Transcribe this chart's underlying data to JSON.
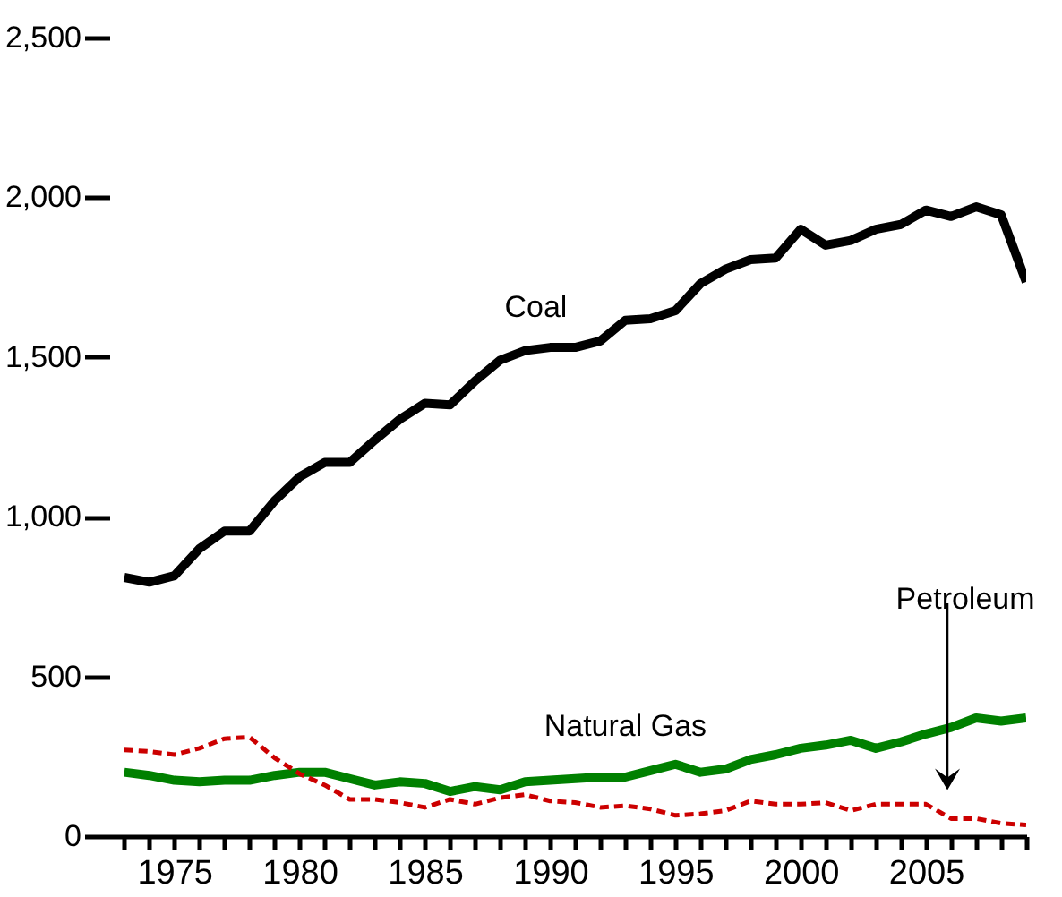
{
  "chart_data": {
    "type": "line",
    "x": [
      1973,
      1974,
      1975,
      1976,
      1977,
      1978,
      1979,
      1980,
      1981,
      1982,
      1983,
      1984,
      1985,
      1986,
      1987,
      1988,
      1989,
      1990,
      1991,
      1992,
      1993,
      1994,
      1995,
      1996,
      1997,
      1998,
      1999,
      2000,
      2001,
      2002,
      2003,
      2004,
      2005,
      2006,
      2007,
      2008,
      2009
    ],
    "series": [
      {
        "name": "Coal",
        "color": "#000000",
        "line_style": "solid",
        "values": [
          810,
          795,
          815,
          900,
          955,
          955,
          1050,
          1125,
          1170,
          1170,
          1240,
          1305,
          1355,
          1350,
          1425,
          1490,
          1520,
          1530,
          1530,
          1550,
          1615,
          1620,
          1645,
          1730,
          1775,
          1805,
          1810,
          1900,
          1850,
          1865,
          1900,
          1915,
          1960,
          1940,
          1970,
          1945,
          1735
        ]
      },
      {
        "name": "Natural Gas",
        "color": "#008000",
        "line_style": "solid",
        "values": [
          200,
          190,
          175,
          170,
          175,
          175,
          190,
          200,
          200,
          180,
          160,
          170,
          165,
          140,
          155,
          145,
          170,
          175,
          180,
          185,
          185,
          205,
          225,
          200,
          210,
          240,
          255,
          275,
          285,
          300,
          275,
          295,
          320,
          340,
          370,
          360,
          370
        ]
      },
      {
        "name": "Petroleum",
        "color": "#cc0000",
        "line_style": "dashed",
        "values": [
          270,
          265,
          255,
          275,
          305,
          310,
          245,
          195,
          160,
          115,
          115,
          105,
          90,
          115,
          100,
          120,
          130,
          110,
          105,
          90,
          95,
          85,
          65,
          70,
          80,
          110,
          100,
          100,
          105,
          80,
          100,
          100,
          100,
          55,
          55,
          40,
          35
        ]
      }
    ],
    "xlim": [
      1972.4,
      2009
    ],
    "xticks": [
      {
        "value": 1973,
        "label": null
      },
      {
        "value": 1974,
        "label": null
      },
      1975,
      {
        "value": 1976,
        "label": null
      },
      {
        "value": 1977,
        "label": null
      },
      {
        "value": 1978,
        "label": null
      },
      {
        "value": 1979,
        "label": null
      },
      1980,
      {
        "value": 1981,
        "label": null
      },
      {
        "value": 1982,
        "label": null
      },
      {
        "value": 1983,
        "label": null
      },
      {
        "value": 1984,
        "label": null
      },
      1985,
      {
        "value": 1986,
        "label": null
      },
      {
        "value": 1987,
        "label": null
      },
      {
        "value": 1988,
        "label": null
      },
      {
        "value": 1989,
        "label": null
      },
      1990,
      {
        "value": 1991,
        "label": null
      },
      {
        "value": 1992,
        "label": null
      },
      {
        "value": 1993,
        "label": null
      },
      {
        "value": 1994,
        "label": null
      },
      1995,
      {
        "value": 1996,
        "label": null
      },
      {
        "value": 1997,
        "label": null
      },
      {
        "value": 1998,
        "label": null
      },
      {
        "value": 1999,
        "label": null
      },
      2000,
      {
        "value": 2001,
        "label": null
      },
      {
        "value": 2002,
        "label": null
      },
      {
        "value": 2003,
        "label": null
      },
      {
        "value": 2004,
        "label": null
      },
      2005,
      {
        "value": 2006,
        "label": null
      },
      {
        "value": 2007,
        "label": null
      },
      {
        "value": 2008,
        "label": null
      },
      {
        "value": 2009,
        "label": null
      }
    ],
    "ylim": [
      0,
      2500
    ],
    "yticks": [
      0,
      500,
      {
        "value": 1000,
        "label": "1,000"
      },
      {
        "value": 1500,
        "label": "1,500"
      },
      {
        "value": 2000,
        "label": "2,000"
      },
      {
        "value": 2500,
        "label": "2,500"
      }
    ],
    "grid": false,
    "marker": "none"
  }
}
